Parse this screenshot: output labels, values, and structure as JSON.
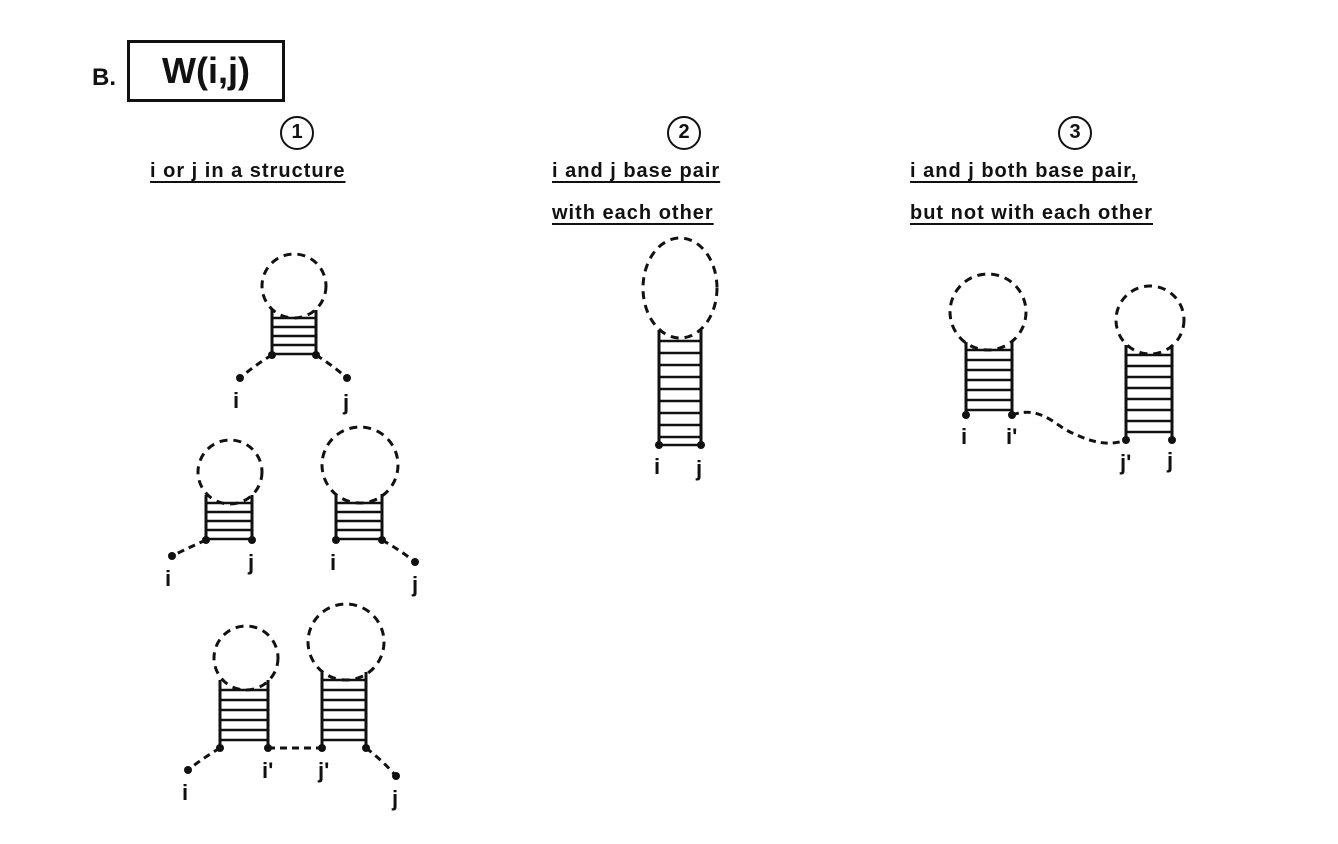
{
  "panel_label": "B.",
  "title": "W(i,j)",
  "cases": [
    {
      "number": "1",
      "caption_lines": [
        "i or j in a structure"
      ]
    },
    {
      "number": "2",
      "caption_lines": [
        "i and j base pair",
        "with each other"
      ]
    },
    {
      "number": "3",
      "caption_lines": [
        "i and j both base pair,",
        "but not with each other"
      ]
    }
  ],
  "labels": {
    "i": "i",
    "j": "j",
    "i_prime": "i'",
    "j_prime": "j'"
  }
}
